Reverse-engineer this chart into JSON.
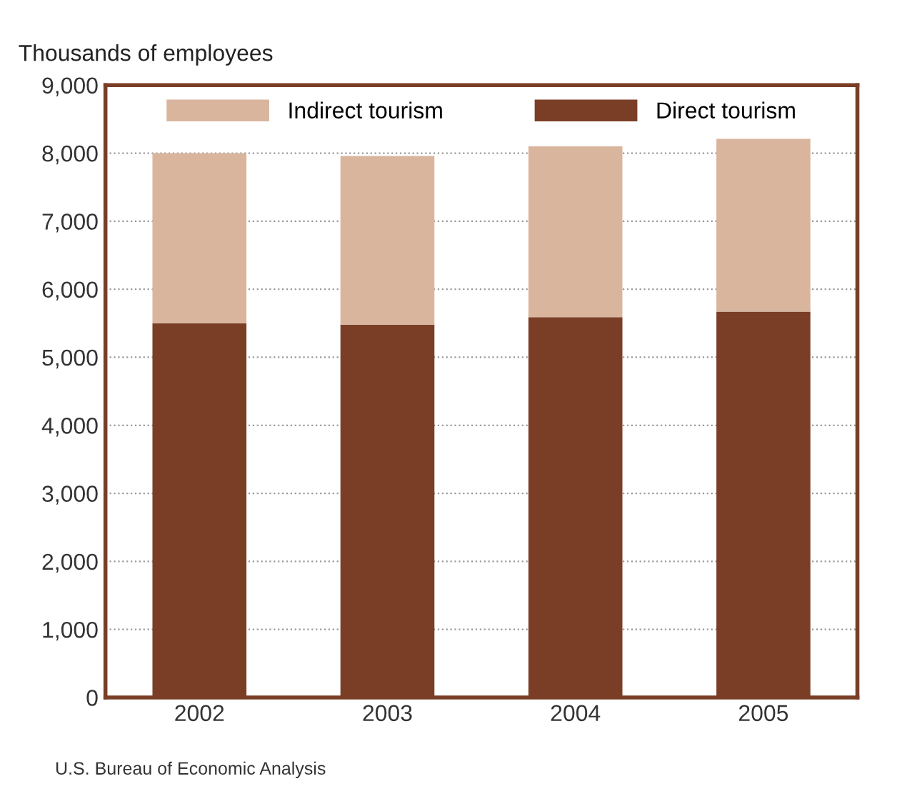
{
  "chart_data": {
    "type": "bar",
    "ylabel": "Thousands of employees",
    "categories": [
      "2002",
      "2003",
      "2004",
      "2005"
    ],
    "series": [
      {
        "name": "Direct tourism",
        "color": "#7a3e26",
        "values": [
          5500,
          5480,
          5590,
          5670
        ]
      },
      {
        "name": "Indirect tourism",
        "color": "#d9b59e",
        "values": [
          2500,
          2480,
          2510,
          2540
        ]
      }
    ],
    "stacked": true,
    "ylim": [
      0,
      9000
    ],
    "yticks": [
      {
        "value": 0,
        "label": "0"
      },
      {
        "value": 1000,
        "label": "1,000"
      },
      {
        "value": 2000,
        "label": "2,000"
      },
      {
        "value": 3000,
        "label": "3,000"
      },
      {
        "value": 4000,
        "label": "4,000"
      },
      {
        "value": 5000,
        "label": "5,000"
      },
      {
        "value": 6000,
        "label": "6,000"
      },
      {
        "value": 7000,
        "label": "7,000"
      },
      {
        "value": 8000,
        "label": "8,000"
      },
      {
        "value": 9000,
        "label": "9,000"
      }
    ],
    "grid": "y",
    "legend": "top",
    "annotations": [
      "U.S. Bureau of Economic Analysis"
    ]
  }
}
